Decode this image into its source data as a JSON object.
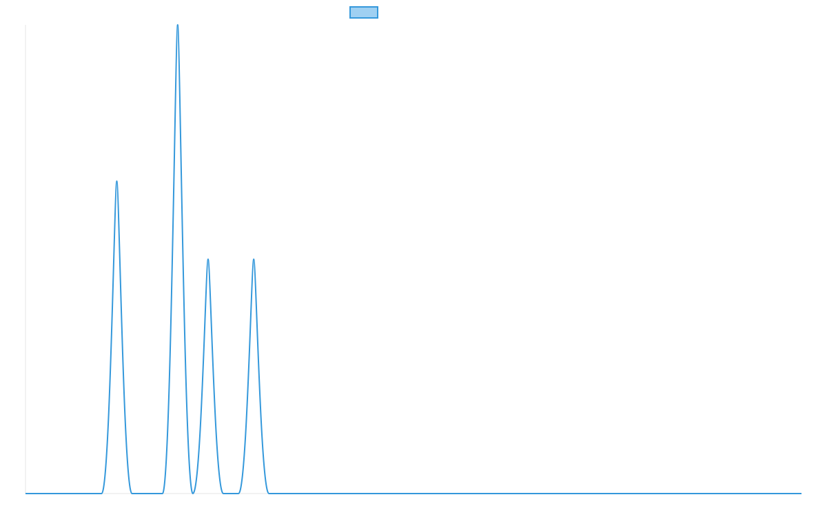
{
  "colors": {
    "line": "#3498db",
    "legend_fill": "#9fd0f2",
    "axis": "#e6e6e6",
    "background": "#ffffff"
  },
  "legend": {
    "placement": "top-center",
    "entries": [
      {
        "label": "",
        "color": "#3498db"
      }
    ]
  },
  "chart_data": {
    "type": "line",
    "title": "",
    "xlabel": "",
    "ylabel": "",
    "grid": false,
    "xlim": [
      0,
      51
    ],
    "ylim": [
      0,
      3
    ],
    "series": [
      {
        "name": "",
        "x": [
          0,
          5,
          6,
          7,
          9,
          10,
          11,
          12,
          13,
          14,
          15,
          16,
          17,
          51
        ],
        "y": [
          0,
          0,
          2,
          0,
          0,
          3,
          0,
          1.5,
          0,
          0,
          1.5,
          0,
          0,
          0
        ]
      }
    ]
  }
}
